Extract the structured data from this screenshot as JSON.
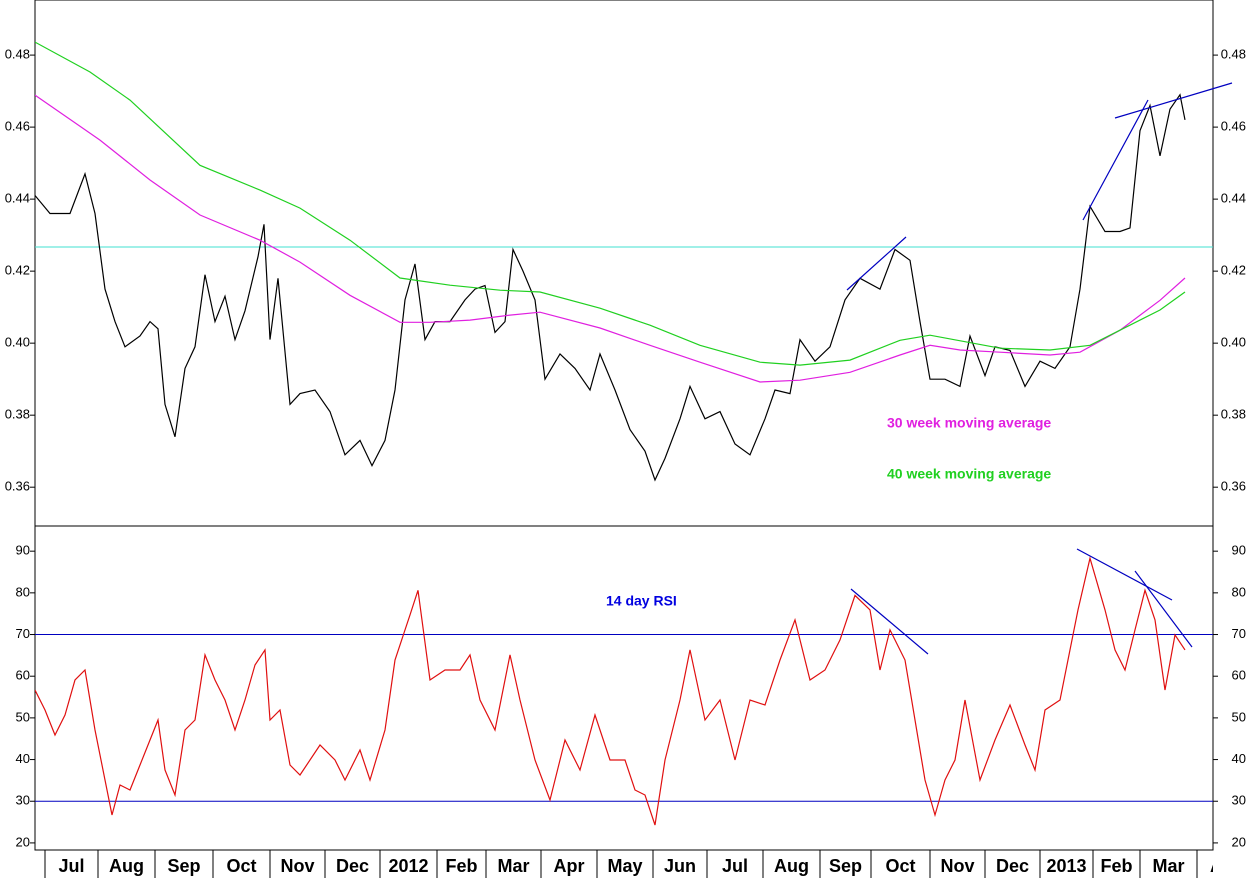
{
  "chart_data": [
    {
      "type": "line",
      "xlim": [
        0,
        117.8
      ],
      "ylim": [
        0.3495,
        0.4953
      ],
      "yticks": [
        0.36,
        0.38,
        {
          "value": 0.4,
          "label": "0.40"
        },
        0.42,
        0.44,
        0.46,
        0.48
      ],
      "hline": 0.4267,
      "hline_color": "#40e0d0",
      "series": [
        {
          "color": "#000000",
          "x": [
            0,
            1.5,
            3.5,
            5,
            6,
            7,
            8,
            9,
            10.5,
            11.5,
            12.3,
            13,
            14,
            15,
            16,
            17,
            18,
            19,
            20,
            21,
            22.3,
            22.9,
            23.5,
            24.3,
            25.5,
            26.5,
            28,
            29.5,
            31,
            32.5,
            33.7,
            35,
            36,
            37,
            38,
            39,
            40,
            41.5,
            43,
            44,
            45,
            46,
            47,
            47.8,
            48.8,
            50,
            51,
            52.5,
            54,
            55.5,
            56.5,
            58,
            59.5,
            61,
            62,
            63,
            64.5,
            65.5,
            67,
            68.5,
            70,
            71.5,
            73,
            74,
            75.5,
            76.5,
            78,
            79.5,
            81,
            82.5,
            84.5,
            86,
            87.5,
            88.5,
            89.5,
            91,
            92.5,
            93.5,
            95,
            96,
            97.5,
            99,
            100.5,
            102,
            103.5,
            104.5,
            105.5,
            107,
            108.5,
            109.5,
            110.5,
            111.5,
            112.5,
            113.5,
            114.5,
            115
          ],
          "values": [
            0.441,
            0.436,
            0.436,
            0.447,
            0.436,
            0.415,
            0.406,
            0.399,
            0.402,
            0.406,
            0.404,
            0.383,
            0.374,
            0.393,
            0.399,
            0.419,
            0.406,
            0.413,
            0.401,
            0.409,
            0.424,
            0.433,
            0.401,
            0.418,
            0.383,
            0.386,
            0.387,
            0.381,
            0.369,
            0.373,
            0.366,
            0.373,
            0.387,
            0.412,
            0.422,
            0.401,
            0.406,
            0.406,
            0.412,
            0.415,
            0.416,
            0.403,
            0.406,
            0.426,
            0.42,
            0.412,
            0.39,
            0.397,
            0.393,
            0.387,
            0.397,
            0.387,
            0.376,
            0.37,
            0.362,
            0.368,
            0.379,
            0.388,
            0.379,
            0.381,
            0.372,
            0.369,
            0.379,
            0.387,
            0.386,
            0.401,
            0.395,
            0.399,
            0.412,
            0.418,
            0.415,
            0.426,
            0.423,
            0.406,
            0.39,
            0.39,
            0.388,
            0.402,
            0.391,
            0.399,
            0.398,
            0.388,
            0.395,
            0.393,
            0.399,
            0.415,
            0.438,
            0.431,
            0.431,
            0.432,
            0.459,
            0.466,
            0.452,
            0.465,
            0.469,
            0.462
          ]
        },
        {
          "name": "30 week moving average",
          "color": "#e020e0",
          "x": [
            0,
            6.5,
            11.5,
            16.5,
            22.5,
            26.5,
            31.5,
            36.5,
            39.5,
            43.5,
            47.5,
            50.5,
            56.5,
            61.5,
            66.5,
            72.5,
            76.5,
            81.5,
            86.5,
            89.5,
            92.5,
            96.5,
            101.5,
            104.5,
            108.5,
            112.5,
            115
          ],
          "values": [
            0.4689,
            0.4564,
            0.4453,
            0.4356,
            0.4286,
            0.4225,
            0.4133,
            0.4058,
            0.4058,
            0.4064,
            0.4078,
            0.4086,
            0.4042,
            0.3994,
            0.3947,
            0.3892,
            0.3897,
            0.3919,
            0.3967,
            0.3994,
            0.3981,
            0.3975,
            0.3967,
            0.3975,
            0.4036,
            0.4119,
            0.4181
          ]
        },
        {
          "name": "40 week moving average",
          "color": "#20d020",
          "x": [
            0,
            5.5,
            9.5,
            16.5,
            22.5,
            26.5,
            31.5,
            36.5,
            41.5,
            46.5,
            50.5,
            56.5,
            61.5,
            66.5,
            72.5,
            76.5,
            81.5,
            86.5,
            89.5,
            96.5,
            101.5,
            105.5,
            108.5,
            112.5,
            115
          ],
          "values": [
            0.4836,
            0.4753,
            0.4675,
            0.4494,
            0.4425,
            0.4375,
            0.4286,
            0.4181,
            0.4161,
            0.4147,
            0.4142,
            0.4097,
            0.405,
            0.3994,
            0.3947,
            0.3939,
            0.3953,
            0.4008,
            0.4022,
            0.3986,
            0.3981,
            0.3994,
            0.4036,
            0.4092,
            0.4142
          ]
        }
      ]
    },
    {
      "type": "line",
      "xlim": [
        0,
        117.8
      ],
      "ylim": [
        18.3,
        95.8
      ],
      "yticks": [
        20,
        30,
        40,
        50,
        60,
        70,
        80,
        90
      ],
      "hlines": [
        70,
        30
      ],
      "hline_color": "#0000c0",
      "xticks": [
        {
          "value": 1.0,
          "label": "Jul"
        },
        {
          "value": 6.3,
          "label": "Aug"
        },
        {
          "value": 12.0,
          "label": "Sep"
        },
        {
          "value": 17.8,
          "label": "Oct"
        },
        {
          "value": 23.5,
          "label": "Nov"
        },
        {
          "value": 29.0,
          "label": "Dec"
        },
        {
          "value": 34.5,
          "label": "2012"
        },
        {
          "value": 40.2,
          "label": "Feb"
        },
        {
          "value": 45.1,
          "label": "Mar"
        },
        {
          "value": 50.6,
          "label": "Apr"
        },
        {
          "value": 56.2,
          "label": "May"
        },
        {
          "value": 61.8,
          "label": "Jun"
        },
        {
          "value": 67.2,
          "label": "Jul"
        },
        {
          "value": 72.8,
          "label": "Aug"
        },
        {
          "value": 78.5,
          "label": "Sep"
        },
        {
          "value": 83.6,
          "label": "Oct"
        },
        {
          "value": 89.5,
          "label": "Nov"
        },
        {
          "value": 95.0,
          "label": "Dec"
        },
        {
          "value": 100.5,
          "label": "2013"
        },
        {
          "value": 105.8,
          "label": "Feb"
        },
        {
          "value": 110.5,
          "label": "Mar"
        },
        {
          "value": 116.2,
          "label": "Apr"
        }
      ],
      "series": [
        {
          "name": "14 day RSI",
          "color": "#e01010",
          "name_color": "#0000e0",
          "x": [
            0,
            1,
            2,
            3,
            4,
            5,
            6,
            7,
            7.7,
            8.5,
            9.5,
            10.5,
            11.5,
            12.3,
            13,
            14,
            15,
            16,
            17,
            18,
            19,
            20,
            21,
            22,
            23,
            23.5,
            24.5,
            25.5,
            26.5,
            28.5,
            30,
            31,
            32.5,
            33.5,
            35,
            36,
            37.5,
            38.3,
            39.5,
            41,
            42.5,
            43.5,
            44.5,
            46,
            47.5,
            48.5,
            50,
            51.5,
            53,
            54.5,
            56,
            57.5,
            59,
            60,
            61,
            62,
            63,
            64.5,
            65.5,
            67,
            68.5,
            70,
            71.5,
            73,
            74.5,
            76,
            77.5,
            79,
            80.5,
            82,
            83.5,
            84.5,
            85.5,
            87,
            88,
            89,
            90,
            91,
            92,
            93,
            94.5,
            96,
            97.5,
            99,
            100,
            101,
            102.5,
            103.5,
            104.3,
            105.5,
            107,
            108,
            109,
            110,
            111,
            112,
            113,
            114,
            115
          ],
          "values": [
            56.7,
            51.9,
            45.9,
            50.7,
            59.1,
            61.5,
            47.1,
            35.1,
            26.7,
            33.9,
            32.7,
            38.7,
            44.7,
            49.5,
            37.5,
            31.5,
            47.1,
            49.5,
            65.1,
            59.1,
            54.3,
            47.1,
            54.3,
            62.7,
            66.3,
            49.5,
            51.9,
            38.7,
            36.3,
            43.5,
            39.9,
            35.1,
            42.3,
            35.1,
            47.1,
            63.9,
            74.7,
            80.6,
            59.1,
            61.5,
            61.5,
            65.1,
            54.3,
            47.1,
            65.1,
            54.3,
            39.9,
            30.3,
            44.7,
            37.5,
            50.7,
            39.9,
            39.9,
            32.7,
            31.5,
            24.3,
            39.9,
            54.3,
            66.3,
            49.5,
            54.3,
            39.9,
            54.3,
            53.1,
            63.9,
            73.5,
            59.1,
            61.5,
            68.7,
            79.4,
            75.9,
            61.5,
            71.1,
            63.9,
            49.5,
            35.1,
            26.7,
            35.1,
            39.9,
            54.3,
            35.1,
            44.7,
            53.1,
            43.5,
            37.5,
            51.9,
            54.3,
            66.3,
            75.9,
            88.3,
            75.9,
            66.3,
            61.5,
            71.1,
            80.6,
            73.5,
            56.7,
            69.9,
            66.3
          ]
        }
      ]
    }
  ]
}
